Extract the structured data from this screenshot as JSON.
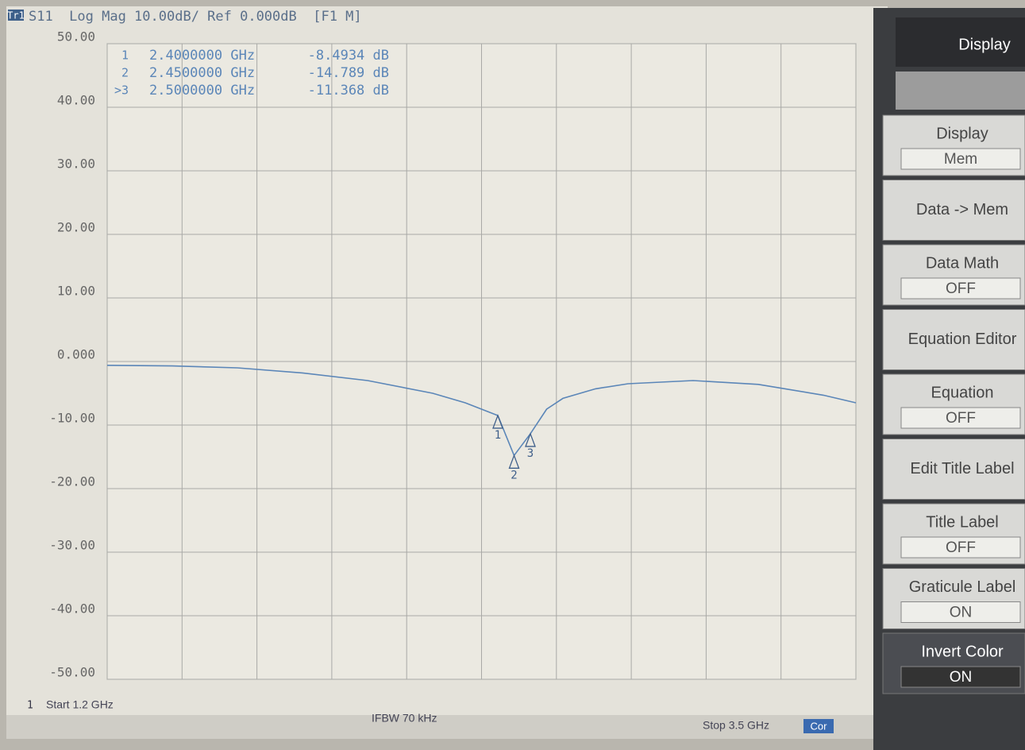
{
  "header": {
    "trace": "Tr1",
    "text": "S11  Log Mag 10.00dB/ Ref 0.000dB  [F1 M]"
  },
  "chart_data": {
    "type": "line",
    "xlim": [
      1.2,
      3.5
    ],
    "xticks": [
      1.2,
      1.43,
      1.66,
      1.89,
      2.12,
      2.35,
      2.58,
      2.81,
      3.04,
      3.27,
      3.5
    ],
    "ylim": [
      -50,
      50
    ],
    "yticks": [
      {
        "value": 50,
        "label": "50.00"
      },
      {
        "value": 40,
        "label": "40.00"
      },
      {
        "value": 30,
        "label": "30.00"
      },
      {
        "value": 20,
        "label": "20.00"
      },
      {
        "value": 10,
        "label": "10.00"
      },
      {
        "value": 0,
        "label": "0.000"
      },
      {
        "value": -10,
        "label": "-10.00"
      },
      {
        "value": -20,
        "label": "-20.00"
      },
      {
        "value": -30,
        "label": "-30.00"
      },
      {
        "value": -40,
        "label": "-40.00"
      },
      {
        "value": -50,
        "label": "-50.00"
      }
    ],
    "grid": true,
    "color": "#5b86b8",
    "x": [
      1.2,
      1.4,
      1.6,
      1.8,
      2.0,
      2.2,
      2.3,
      2.4,
      2.45,
      2.5,
      2.55,
      2.6,
      2.7,
      2.8,
      3.0,
      3.2,
      3.4,
      3.5
    ],
    "values": [
      -0.6,
      -0.7,
      -1.0,
      -1.8,
      -3.0,
      -5.0,
      -6.5,
      -8.4934,
      -14.789,
      -11.368,
      -7.5,
      -5.8,
      -4.3,
      -3.5,
      -3.0,
      -3.6,
      -5.3,
      -6.5
    ],
    "markers": {
      "ids": [
        "1",
        "2",
        "3"
      ],
      "table_ids": [
        "1",
        "2",
        ">3"
      ],
      "x": [
        2.4,
        2.45,
        2.5
      ],
      "x_labels": [
        "2.4000000 GHz",
        "2.4500000 GHz",
        "2.5000000 GHz"
      ],
      "values": [
        -8.4934,
        -14.789,
        -11.368
      ],
      "value_labels": [
        "-8.4934 dB",
        "-14.789 dB",
        "-11.368 dB"
      ]
    }
  },
  "footer": {
    "channel": "1",
    "start": "Start 1.2 GHz",
    "ifbw": "IFBW 70 kHz",
    "stop": "Stop 3.5 GHz",
    "cor": "Cor"
  },
  "softkeys": {
    "title": "Display",
    "keys": [
      {
        "label": "Display",
        "value": "Mem"
      },
      {
        "label": "Data -> Mem"
      },
      {
        "label": "Data Math",
        "value": "OFF"
      },
      {
        "label": "Equation Editor"
      },
      {
        "label": "Equation",
        "value": "OFF"
      },
      {
        "label": "Edit Title Label"
      },
      {
        "label": "Title Label",
        "value": "OFF"
      },
      {
        "label": "Graticule Label",
        "value": "ON"
      },
      {
        "label": "Invert Color",
        "value": "ON"
      }
    ]
  }
}
